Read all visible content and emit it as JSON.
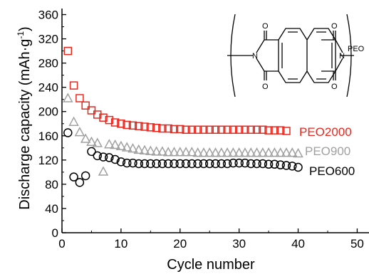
{
  "chart_data": {
    "type": "scatter",
    "xlabel": "Cycle number",
    "ylabel_main": "Discharge capacity (mAh·g",
    "ylabel_sup": "-1",
    "ylabel_close": ")",
    "xlim": [
      0,
      52
    ],
    "ylim": [
      0,
      370
    ],
    "xticks": [
      0,
      10,
      20,
      30,
      40,
      50
    ],
    "yticks": [
      0,
      40,
      80,
      120,
      160,
      200,
      240,
      280,
      320,
      360
    ],
    "grid": false,
    "legend": "series labels placed to the right of each series",
    "series": [
      {
        "name": "PEO2000",
        "color": "#e8281e",
        "marker": "square",
        "x": [
          1,
          2,
          3,
          4,
          5,
          6,
          7,
          8,
          9,
          10,
          11,
          12,
          13,
          14,
          15,
          16,
          17,
          18,
          19,
          20,
          21,
          22,
          23,
          24,
          25,
          26,
          27,
          28,
          29,
          30,
          31,
          32,
          33,
          34,
          35,
          36,
          37,
          38
        ],
        "y": [
          300,
          243,
          222,
          210,
          202,
          195,
          190,
          186,
          182,
          180,
          178,
          177,
          176,
          175,
          174,
          173,
          172,
          172,
          171,
          171,
          170,
          170,
          170,
          170,
          170,
          170,
          170,
          170,
          170,
          170,
          170,
          170,
          170,
          170,
          169,
          169,
          169,
          168
        ]
      },
      {
        "name": "PEO900",
        "color": "#a0a0a0",
        "marker": "triangle",
        "x": [
          1,
          2,
          3,
          4,
          5,
          6,
          7,
          8,
          9,
          10,
          11,
          12,
          13,
          14,
          15,
          16,
          17,
          18,
          19,
          20,
          21,
          22,
          23,
          24,
          25,
          26,
          27,
          28,
          29,
          30,
          31,
          32,
          33,
          34,
          35,
          36,
          37,
          38,
          39,
          40
        ],
        "y": [
          222,
          183,
          166,
          155,
          150,
          148,
          101,
          146,
          145,
          143,
          141,
          139,
          137,
          136,
          135,
          134,
          134,
          133,
          133,
          133,
          133,
          133,
          132,
          132,
          132,
          132,
          132,
          132,
          132,
          132,
          132,
          132,
          132,
          132,
          132,
          132,
          132,
          132,
          132,
          131
        ]
      },
      {
        "name": "PEO600",
        "color": "#000000",
        "marker": "circle",
        "x": [
          1,
          2,
          3,
          4,
          5,
          6,
          7,
          8,
          9,
          10,
          11,
          12,
          13,
          14,
          15,
          16,
          17,
          18,
          19,
          20,
          21,
          22,
          23,
          24,
          25,
          26,
          27,
          28,
          29,
          30,
          31,
          32,
          33,
          34,
          35,
          36,
          37,
          38,
          39,
          40
        ],
        "y": [
          165,
          92,
          83,
          94,
          134,
          127,
          125,
          124,
          121,
          117,
          115,
          115,
          114,
          114,
          114,
          114,
          114,
          114,
          114,
          114,
          114,
          114,
          114,
          114,
          114,
          114,
          114,
          114,
          115,
          115,
          115,
          114,
          114,
          114,
          113,
          113,
          112,
          111,
          110,
          108
        ]
      }
    ]
  },
  "structure": {
    "atom_o": "O",
    "atom_n": "N",
    "peo_label": "PEO"
  }
}
